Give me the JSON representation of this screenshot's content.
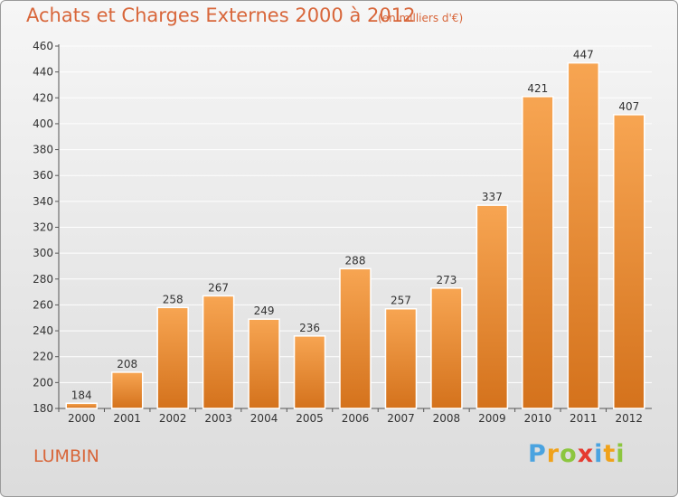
{
  "header": {
    "title": "Achats et Charges Externes 2000 à 2012",
    "subtitle": "(en milliers d'€)"
  },
  "footer": {
    "town": "LUMBIN",
    "logo_text": "Proxiti",
    "logo_icon": "proxiti-logo",
    "logo_colors": [
      "#4aa3e0",
      "#f0a21a",
      "#8cc63f",
      "#e53a2f",
      "#4aa3e0",
      "#f0a21a",
      "#8cc63f"
    ]
  },
  "colors": {
    "title": "#d8663a",
    "bar_top": "#f7a552",
    "bar_bottom": "#d4721c",
    "grid": "#ffffff"
  },
  "chart_data": {
    "type": "bar",
    "categories": [
      "2000",
      "2001",
      "2002",
      "2003",
      "2004",
      "2005",
      "2006",
      "2007",
      "2008",
      "2009",
      "2010",
      "2011",
      "2012"
    ],
    "values": [
      184,
      208,
      258,
      267,
      249,
      236,
      288,
      257,
      273,
      337,
      421,
      447,
      407
    ],
    "title": "Achats et Charges Externes 2000 à 2012",
    "subtitle": "(en milliers d'€)",
    "xlabel": "",
    "ylabel": "",
    "ylim": [
      180,
      460
    ],
    "yticks": [
      180,
      200,
      220,
      240,
      260,
      280,
      300,
      320,
      340,
      360,
      380,
      400,
      420,
      440,
      460
    ],
    "grid": true,
    "data_labels": true
  }
}
